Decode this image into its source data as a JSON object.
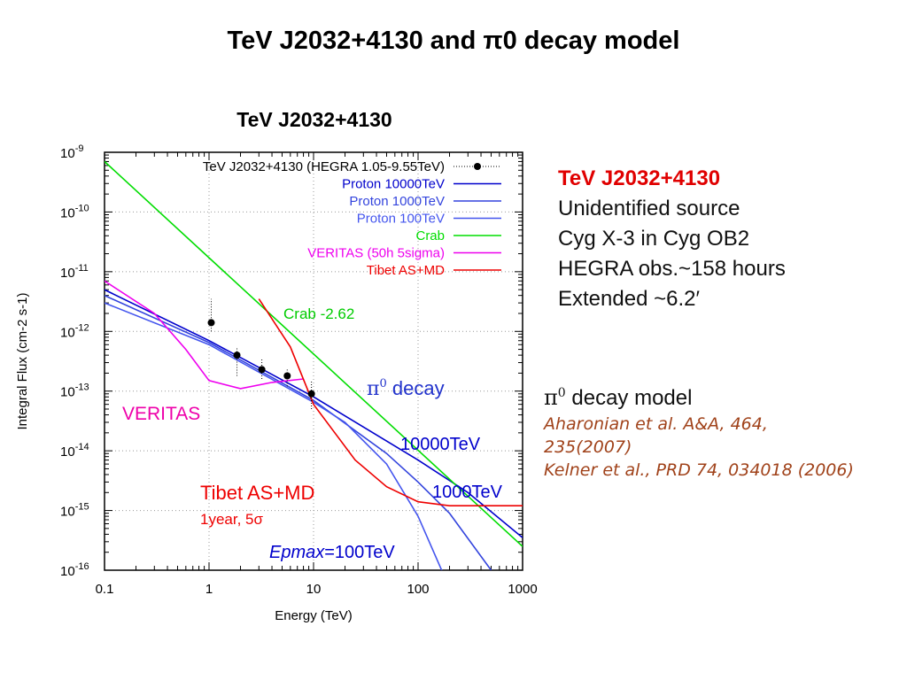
{
  "slide_title": "TeV J2032+4130  and π0 decay model",
  "chart_data": {
    "type": "line",
    "title": "TeV J2032+4130",
    "xlabel": "Energy (TeV)",
    "ylabel": "Integral Flux (cm-2 s-1)",
    "xscale": "log",
    "yscale": "log",
    "xlim": [
      0.1,
      1000
    ],
    "ylim": [
      1e-16,
      1e-09
    ],
    "grid": true,
    "legend_position": "top-right",
    "x_ticks": [
      {
        "v": 0.1,
        "label": "0.1"
      },
      {
        "v": 1,
        "label": "1"
      },
      {
        "v": 10,
        "label": "10"
      },
      {
        "v": 100,
        "label": "100"
      },
      {
        "v": 1000,
        "label": "1000"
      }
    ],
    "y_ticks": [
      {
        "exp": -16,
        "label": "10",
        "sup": "-16"
      },
      {
        "exp": -15,
        "label": "10",
        "sup": "-15"
      },
      {
        "exp": -14,
        "label": "10",
        "sup": "-14"
      },
      {
        "exp": -13,
        "label": "10",
        "sup": "-13"
      },
      {
        "exp": -12,
        "label": "10",
        "sup": "-12"
      },
      {
        "exp": -11,
        "label": "10",
        "sup": "-11"
      },
      {
        "exp": -10,
        "label": "10",
        "sup": "-10"
      },
      {
        "exp": -9,
        "label": "10",
        "sup": "-9"
      }
    ],
    "series": [
      {
        "name": "TeV J2032+4130 (HEGRA 1.05-9.55TeV)",
        "kind": "points",
        "color": "#000000",
        "x": [
          1.05,
          1.85,
          3.2,
          5.6,
          9.55
        ],
        "y": [
          1.4e-12,
          4e-13,
          2.3e-13,
          1.8e-13,
          9e-14
        ],
        "y_err_low": [
          1e-12,
          1.8e-13,
          1.6e-13,
          1.2e-13,
          5e-14
        ],
        "y_err_high": [
          3.5e-12,
          5.5e-13,
          3.5e-13,
          2.3e-13,
          1.5e-13
        ]
      },
      {
        "name": "Proton 10000TeV",
        "kind": "line",
        "color": "#0000cc",
        "x": [
          0.1,
          1,
          10,
          100,
          300,
          1000
        ],
        "y": [
          5e-12,
          7e-13,
          8e-14,
          7e-15,
          2e-15,
          3.5e-16
        ]
      },
      {
        "name": "Proton 1000TeV",
        "kind": "line",
        "color": "#3344dd",
        "x": [
          0.1,
          1,
          10,
          50,
          100,
          200,
          500
        ],
        "y": [
          4e-12,
          6.5e-13,
          7e-14,
          9e-15,
          3e-15,
          9e-16,
          1e-16
        ]
      },
      {
        "name": "Proton 100TeV",
        "kind": "line",
        "color": "#4455ee",
        "x": [
          0.1,
          1,
          10,
          20,
          50,
          100,
          200
        ],
        "y": [
          3e-12,
          6e-13,
          6.5e-14,
          3e-14,
          6e-15,
          8e-16,
          5e-17
        ]
      },
      {
        "name": "Crab",
        "kind": "line",
        "color": "#00dd00",
        "x": [
          0.1,
          1000
        ],
        "y": [
          7e-10,
          2.5e-16
        ]
      },
      {
        "name": "VERITAS (50h 5sigma)",
        "kind": "line",
        "color": "#ee00ee",
        "x": [
          0.1,
          0.3,
          0.6,
          1,
          2,
          4,
          8
        ],
        "y": [
          7e-12,
          2e-12,
          5e-13,
          1.5e-13,
          1.1e-13,
          1.4e-13,
          1.6e-13
        ]
      },
      {
        "name": "Tibet AS+MD",
        "kind": "line",
        "color": "#ee0000",
        "x": [
          3,
          6,
          10,
          25,
          50,
          100,
          200,
          1000
        ],
        "y": [
          3.5e-12,
          5.5e-13,
          6e-14,
          7e-15,
          2.5e-15,
          1.4e-15,
          1.2e-15,
          1.2e-15
        ]
      }
    ],
    "annotations": [
      {
        "text": "Crab -2.62",
        "color": "#00cc00"
      },
      {
        "text_prefix": "π",
        "sup": "0",
        "text": " decay",
        "color": "#2233cc"
      },
      {
        "text": "10000TeV",
        "color": "#0000cc"
      },
      {
        "text": "1000TeV",
        "color": "#0000cc"
      },
      {
        "text_italic": "Epmax",
        "text": "=100TeV",
        "color": "#0000cc"
      },
      {
        "text": "VERITAS",
        "color": "#ee00aa"
      },
      {
        "text": "Tibet AS+MD",
        "color": "#ee0000"
      },
      {
        "text": "1year, 5σ",
        "color": "#ee0000"
      }
    ]
  },
  "info": {
    "highlight": "TeV J2032+4130",
    "lines": [
      "Unidentified source",
      "Cyg X-3 in Cyg OB2",
      "HEGRA obs.~158 hours",
      "Extended ~6.2′"
    ]
  },
  "model": {
    "pi_symbol": "π",
    "pi_sup": "0",
    "heading": "decay model",
    "refs": [
      "Aharonian et al. A&A, 464,",
      "235(2007)",
      "Kelner et al., PRD 74, 034018 (2006)"
    ]
  }
}
